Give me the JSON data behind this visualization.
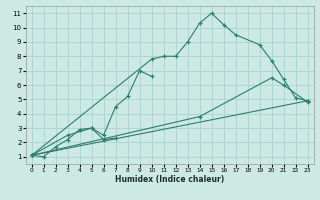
{
  "xlabel": "Humidex (Indice chaleur)",
  "xlim": [
    -0.5,
    23.5
  ],
  "ylim": [
    0.5,
    11.5
  ],
  "xticks": [
    0,
    1,
    2,
    3,
    4,
    5,
    6,
    7,
    8,
    9,
    10,
    11,
    12,
    13,
    14,
    15,
    16,
    17,
    18,
    19,
    20,
    21,
    22,
    23
  ],
  "yticks": [
    1,
    2,
    3,
    4,
    5,
    6,
    7,
    8,
    9,
    10,
    11
  ],
  "background_color": "#cce9e4",
  "line_color": "#2e7d72",
  "grid_color": "#aad4cc",
  "curve1_x": [
    0,
    1,
    2,
    3,
    4,
    5,
    6,
    7
  ],
  "curve1_y": [
    1.1,
    1.0,
    1.7,
    2.2,
    2.9,
    3.0,
    2.2,
    2.3
  ],
  "curve2_x": [
    0,
    3,
    5,
    6,
    7,
    8,
    9,
    10
  ],
  "curve2_y": [
    1.1,
    2.5,
    3.0,
    2.5,
    4.5,
    5.2,
    7.0,
    6.6
  ],
  "curve3_x": [
    0,
    10,
    11,
    12,
    13,
    14,
    15,
    16,
    17,
    19,
    20,
    21,
    22,
    23
  ],
  "curve3_y": [
    1.1,
    7.8,
    8.0,
    8.0,
    9.0,
    10.3,
    11.0,
    10.2,
    9.5,
    8.8,
    7.7,
    6.4,
    5.1,
    4.9
  ],
  "curve4_x": [
    0,
    23
  ],
  "curve4_y": [
    1.1,
    4.9
  ],
  "curve5_x": [
    0,
    14,
    20,
    21,
    23
  ],
  "curve5_y": [
    1.1,
    3.8,
    6.5,
    6.0,
    4.8
  ]
}
